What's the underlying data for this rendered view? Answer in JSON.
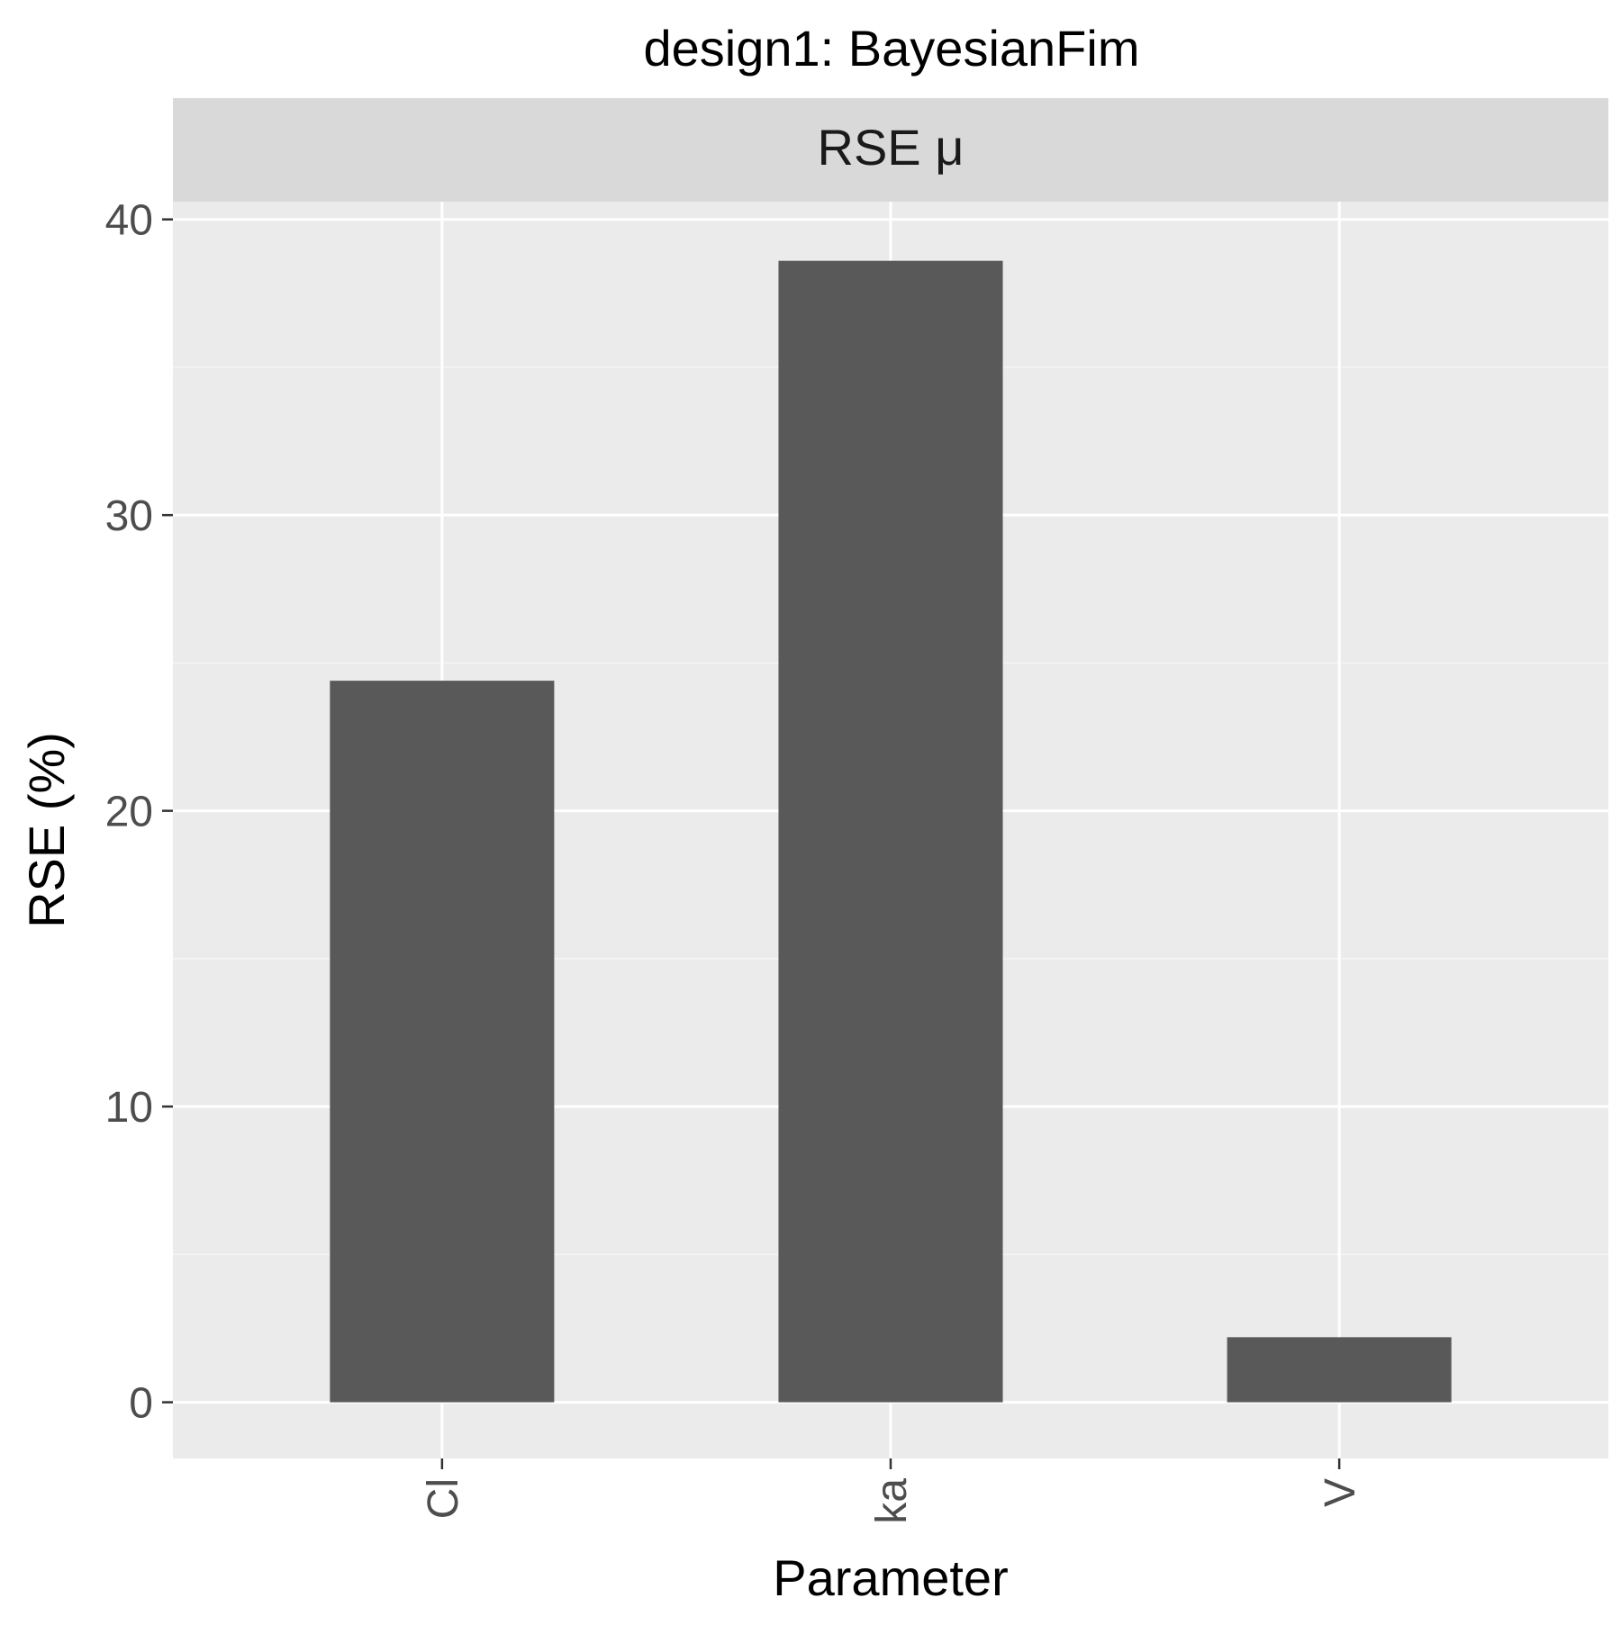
{
  "chart_data": {
    "type": "bar",
    "title": "design1: BayesianFim",
    "facet_label": "RSE μ",
    "xlabel": "Parameter",
    "ylabel": "RSE (%)",
    "categories": [
      "Cl",
      "ka",
      "V"
    ],
    "values": [
      24.4,
      38.6,
      2.2
    ],
    "ylim": [
      -1.9,
      40.6
    ],
    "yticks": [
      0,
      10,
      20,
      30,
      40
    ],
    "ytick_labels": [
      "0",
      "10",
      "20",
      "30",
      "40"
    ],
    "grid": true,
    "legend": "none",
    "colors": {
      "bar": "#595959",
      "panel": "#ebebeb",
      "strip": "#d9d9d9",
      "grid_major": "#ffffff",
      "grid_minor": "#f5f5f5",
      "tick": "#333333"
    }
  }
}
